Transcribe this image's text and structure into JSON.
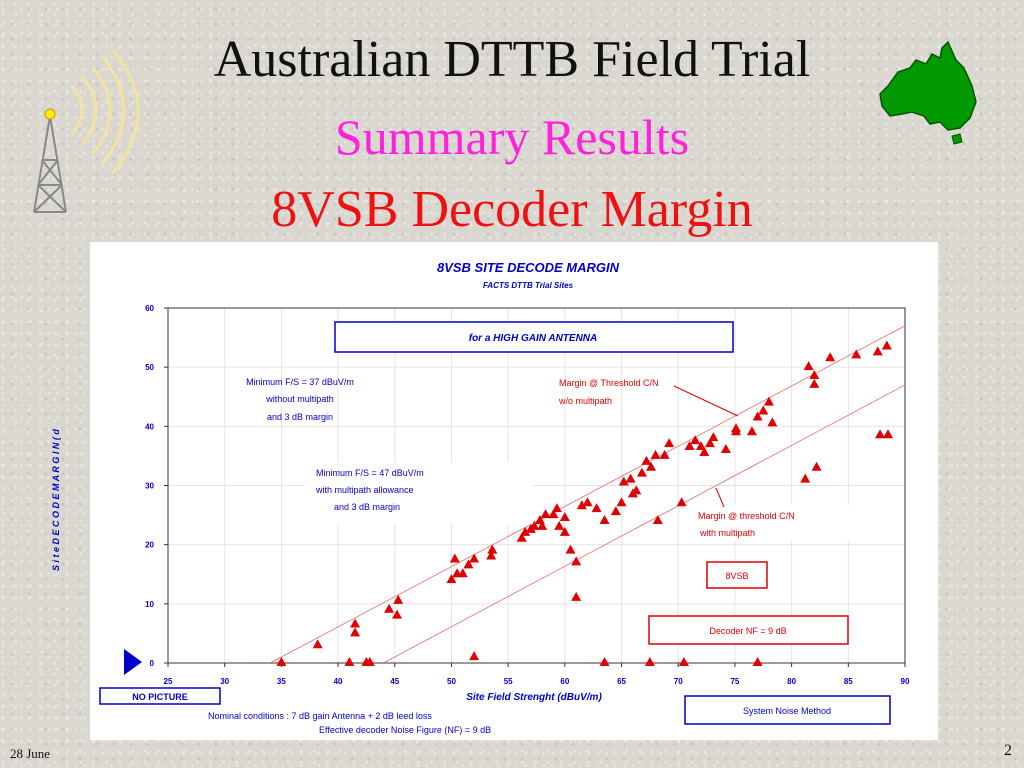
{
  "slide": {
    "title_line1": "Australian DTTB Field Trial",
    "title_line2": "Summary Results",
    "title_line3": "8VSB Decoder Margin",
    "footer_date": "28 June",
    "page_number": "2"
  },
  "annotations": {
    "high_gain": "for  a HIGH GAIN ANTENNA",
    "min37_l1": "Minimum F/S = 37 dBuV/m",
    "min37_l2": "without multipath",
    "min37_l3": "and 3 dB margin",
    "min47_l1": "Minimum F/S = 47 dBuV/m",
    "min47_l2": "with multipath allowance",
    "min47_l3": "and 3 dB margin",
    "margin_no_mp_l1": "Margin @ Threshold C/N",
    "margin_no_mp_l2": "w/o multipath",
    "margin_mp_l1": "Margin @ threshold C/N",
    "margin_mp_l2": "with multipath",
    "legend_8vsb": "8VSB",
    "decoder_nf": "Decoder NF = 9 dB",
    "no_picture": "NO PICTURE",
    "system_noise": "System Noise Method",
    "nominal_l1": "Nominal conditions :   7 dB gain Antenna + 2 dB leed loss",
    "nominal_l2": "Effective decoder  Noise Figure (NF) = 9 dB"
  },
  "chart_data": {
    "type": "scatter",
    "title": "8VSB SITE DECODE MARGIN",
    "subtitle": "FACTS DTTB Trial Sites",
    "xlabel": "Site Field Strenght (dBuV/m)",
    "ylabel": "S i t e   D E C O D E   M A R G I N   ( d",
    "xlim": [
      25,
      90
    ],
    "ylim": [
      0,
      60
    ],
    "xticks": [
      25,
      30,
      35,
      40,
      45,
      50,
      55,
      60,
      65,
      70,
      75,
      80,
      85,
      90
    ],
    "yticks": [
      0,
      10,
      20,
      30,
      40,
      50,
      60
    ],
    "grid": true,
    "series": [
      {
        "name": "8VSB",
        "color": "#e00000",
        "points": [
          [
            35,
            0
          ],
          [
            41,
            0
          ],
          [
            42.5,
            0
          ],
          [
            42.8,
            0
          ],
          [
            52,
            1
          ],
          [
            63.5,
            0
          ],
          [
            67.5,
            0
          ],
          [
            70.5,
            0
          ],
          [
            77,
            0
          ],
          [
            38.2,
            3
          ],
          [
            41.5,
            5
          ],
          [
            41.5,
            6.5
          ],
          [
            44.5,
            9
          ],
          [
            45.2,
            8
          ],
          [
            45.3,
            10.5
          ],
          [
            50,
            14
          ],
          [
            50.5,
            15
          ],
          [
            51,
            15
          ],
          [
            51.5,
            16.5
          ],
          [
            52,
            17.5
          ],
          [
            50.3,
            17.5
          ],
          [
            53.5,
            18
          ],
          [
            53.6,
            19
          ],
          [
            56.2,
            21
          ],
          [
            56.5,
            22
          ],
          [
            57,
            22.5
          ],
          [
            57.3,
            23
          ],
          [
            58,
            23
          ],
          [
            57.8,
            24
          ],
          [
            58.3,
            25
          ],
          [
            59,
            25
          ],
          [
            59.3,
            26
          ],
          [
            60,
            24.5
          ],
          [
            59.5,
            23
          ],
          [
            60,
            22
          ],
          [
            60.5,
            19
          ],
          [
            61,
            17
          ],
          [
            61,
            11
          ],
          [
            61.5,
            26.5
          ],
          [
            62,
            27
          ],
          [
            62.8,
            26
          ],
          [
            63.5,
            24
          ],
          [
            64.5,
            25.5
          ],
          [
            65,
            27
          ],
          [
            65.2,
            30.5
          ],
          [
            65.8,
            31
          ],
          [
            66,
            28.5
          ],
          [
            66.3,
            29
          ],
          [
            66.8,
            32
          ],
          [
            67.2,
            34
          ],
          [
            67.6,
            33
          ],
          [
            68,
            35
          ],
          [
            68.2,
            24
          ],
          [
            68.8,
            35
          ],
          [
            69.2,
            37
          ],
          [
            70.3,
            27
          ],
          [
            71,
            36.5
          ],
          [
            71.5,
            37.5
          ],
          [
            72,
            36.5
          ],
          [
            72.3,
            35.5
          ],
          [
            72.8,
            37
          ],
          [
            73.1,
            38
          ],
          [
            74.2,
            36
          ],
          [
            75.1,
            39
          ],
          [
            75.1,
            39.5
          ],
          [
            76.5,
            39
          ],
          [
            77,
            41.5
          ],
          [
            77.5,
            42.5
          ],
          [
            78,
            44
          ],
          [
            78.3,
            40.5
          ],
          [
            81.2,
            31
          ],
          [
            81.5,
            50
          ],
          [
            82,
            47
          ],
          [
            82,
            48.5
          ],
          [
            82.2,
            33
          ],
          [
            83.4,
            51.5
          ],
          [
            85.7,
            52
          ],
          [
            87.6,
            52.5
          ],
          [
            87.8,
            38.5
          ],
          [
            88.5,
            38.5
          ],
          [
            88.4,
            53.5
          ]
        ]
      }
    ],
    "reference_lines": [
      {
        "name": "Margin @ Threshold C/N w/o multipath",
        "from": [
          34,
          0
        ],
        "to": [
          90,
          57
        ]
      },
      {
        "name": "Margin @ threshold C/N with multipath",
        "from": [
          44,
          0
        ],
        "to": [
          90,
          47
        ]
      }
    ]
  }
}
